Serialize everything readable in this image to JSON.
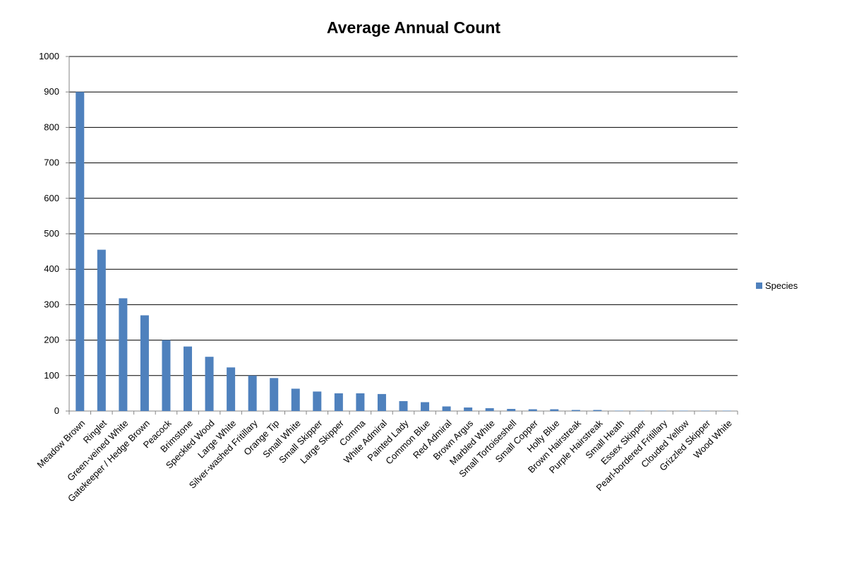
{
  "chart_data": {
    "type": "bar",
    "title": "Average Annual Count",
    "xlabel": "",
    "ylabel": "",
    "ylim": [
      0,
      1000
    ],
    "yticks": [
      0,
      100,
      200,
      300,
      400,
      500,
      600,
      700,
      800,
      900,
      1000
    ],
    "grid": true,
    "legend_position": "right",
    "categories": [
      "Meadow Brown",
      "Ringlet",
      "Green-veined White",
      "Gatekeeper / Hedge Brown",
      "Peacock",
      "Brimstone",
      "Speckled Wood",
      "Large White",
      "Silver-washed Fritillary",
      "Orange Tip",
      "Small White",
      "Small Skipper",
      "Large Skipper",
      "Comma",
      "White Admiral",
      "Painted Lady",
      "Common Blue",
      "Red Admiral",
      "Brown Argus",
      "Marbled White",
      "Small Tortoiseshell",
      "Small Copper",
      "Holly Blue",
      "Brown Hairstreak",
      "Purple Hairstreak",
      "Small Heath",
      "Essex Skipper",
      "Pearl-bordered Fritillary",
      "Clouded Yellow",
      "Grizzled Skipper",
      "Wood White"
    ],
    "series": [
      {
        "name": "Species",
        "color": "#4F81BD",
        "values": [
          900,
          455,
          318,
          270,
          200,
          182,
          153,
          123,
          100,
          93,
          63,
          55,
          50,
          50,
          48,
          28,
          25,
          13,
          10,
          8,
          6,
          5,
          5,
          3,
          3,
          1,
          1,
          1,
          1,
          1,
          1
        ]
      }
    ]
  }
}
